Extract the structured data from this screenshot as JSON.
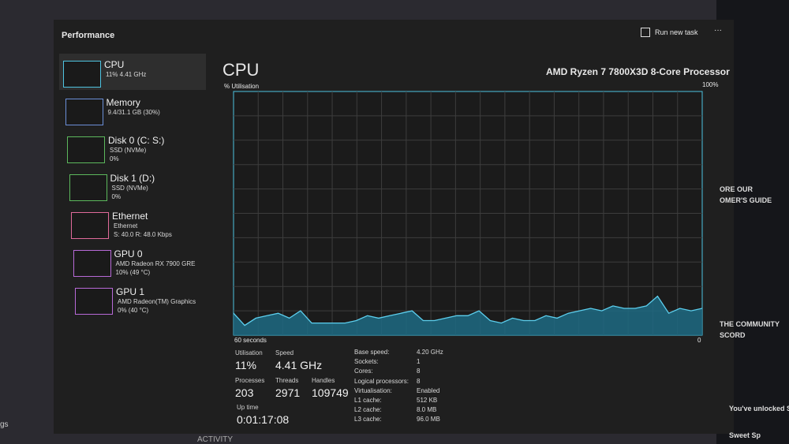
{
  "header": {
    "title": "Performance",
    "run_new_task": "Run new task"
  },
  "sidebar": [
    {
      "name": "CPU",
      "lines": [
        "11% 4.41 GHz"
      ]
    },
    {
      "name": "Memory",
      "lines": [
        "9.4/31.1 GB (30%)"
      ]
    },
    {
      "name": "Disk 0 (C: S:)",
      "lines": [
        "SSD (NVMe)",
        "0%"
      ]
    },
    {
      "name": "Disk 1 (D:)",
      "lines": [
        "SSD (NVMe)",
        "0%"
      ]
    },
    {
      "name": "Ethernet",
      "lines": [
        "Ethernet",
        "S: 40.0 R: 48.0 Kbps"
      ]
    },
    {
      "name": "GPU 0",
      "lines": [
        "AMD Radeon RX 7900 GRE",
        "10% (49 °C)"
      ]
    },
    {
      "name": "GPU 1",
      "lines": [
        "AMD Radeon(TM) Graphics",
        "0% (40 °C)"
      ]
    }
  ],
  "main": {
    "title": "CPU",
    "processor": "AMD Ryzen 7 7800X3D 8-Core Processor",
    "y_label": "% Utilisation",
    "y_max_label": "100%",
    "x_left_label": "60 seconds",
    "x_right_label": "0",
    "graph": {
      "ylim": [
        0,
        100
      ],
      "values": [
        9,
        4,
        7,
        8,
        9,
        7,
        10,
        5,
        5,
        5,
        5,
        6,
        8,
        7,
        8,
        9,
        10,
        6,
        6,
        7,
        8,
        8,
        10,
        6,
        5,
        7,
        6,
        6,
        8,
        7,
        9,
        10,
        11,
        10,
        12,
        11,
        11,
        12,
        16,
        9,
        11,
        10,
        11
      ]
    },
    "stats": [
      {
        "label": "Utilisation",
        "value": "11%"
      },
      {
        "label": "Speed",
        "value": "4.41 GHz"
      },
      {
        "label": "Processes",
        "value": "203"
      },
      {
        "label": "Threads",
        "value": "2971"
      },
      {
        "label": "Handles",
        "value": "109749"
      },
      {
        "label": "Up time",
        "value": "0:01:17:08"
      }
    ],
    "specs": [
      [
        "Base speed:",
        "4.20 GHz"
      ],
      [
        "Sockets:",
        "1"
      ],
      [
        "Cores:",
        "8"
      ],
      [
        "Logical processors:",
        "8"
      ],
      [
        "Virtualisation:",
        "Enabled"
      ],
      [
        "L1 cache:",
        "512 KB"
      ],
      [
        "L2 cache:",
        "8.0 MB"
      ],
      [
        "L3 cache:",
        "96.0 MB"
      ]
    ]
  },
  "background": {
    "left_text": "gs",
    "bottom_text": "ACTIVITY",
    "right_texts": [
      "ORE OUR",
      "OMER'S GUIDE",
      "THE COMMUNITY",
      "SCORD",
      "You've unlocked S",
      "Sweet Sp"
    ]
  }
}
